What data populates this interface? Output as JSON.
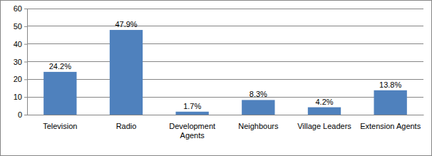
{
  "chart_data": {
    "type": "bar",
    "categories": [
      "Television",
      "Radio",
      "Development Agents",
      "Neighbours",
      "Village Leaders",
      "Extension Agents"
    ],
    "values": [
      24.2,
      47.9,
      1.7,
      8.3,
      4.2,
      13.8
    ],
    "value_labels": [
      "24.2%",
      "47.9%",
      "1.7%",
      "8.3%",
      "4.2%",
      "13.8%"
    ],
    "color": "#4f81bd",
    "ylim": [
      0,
      60
    ],
    "yticks": [
      0,
      10,
      20,
      30,
      40,
      50,
      60
    ],
    "grid": true,
    "data_labels": true
  }
}
